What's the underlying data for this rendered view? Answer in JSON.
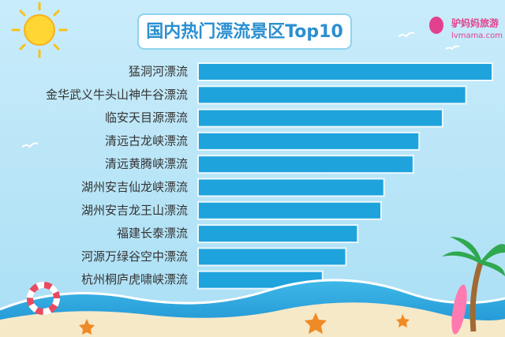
{
  "chart_data": {
    "type": "bar",
    "orientation": "horizontal",
    "title": "国内热门漂流景区Top10",
    "categories": [
      "猛洞河漂流",
      "金华武义牛头山神牛谷漂流",
      "临安天目源漂流",
      "清远古龙峡漂流",
      "清远黄腾峡漂流",
      "湖州安吉仙龙峡漂流",
      "湖州安吉龙王山漂流",
      "福建长泰漂流",
      "河源万绿谷空中漂流",
      "杭州桐庐虎啸峡漂流"
    ],
    "values": [
      100,
      91,
      83,
      75,
      73,
      63,
      62,
      54,
      50,
      42
    ],
    "color": "#1ea3dc"
  },
  "brand": {
    "name": "驴妈妈旅游",
    "url": "lvmama.com"
  }
}
